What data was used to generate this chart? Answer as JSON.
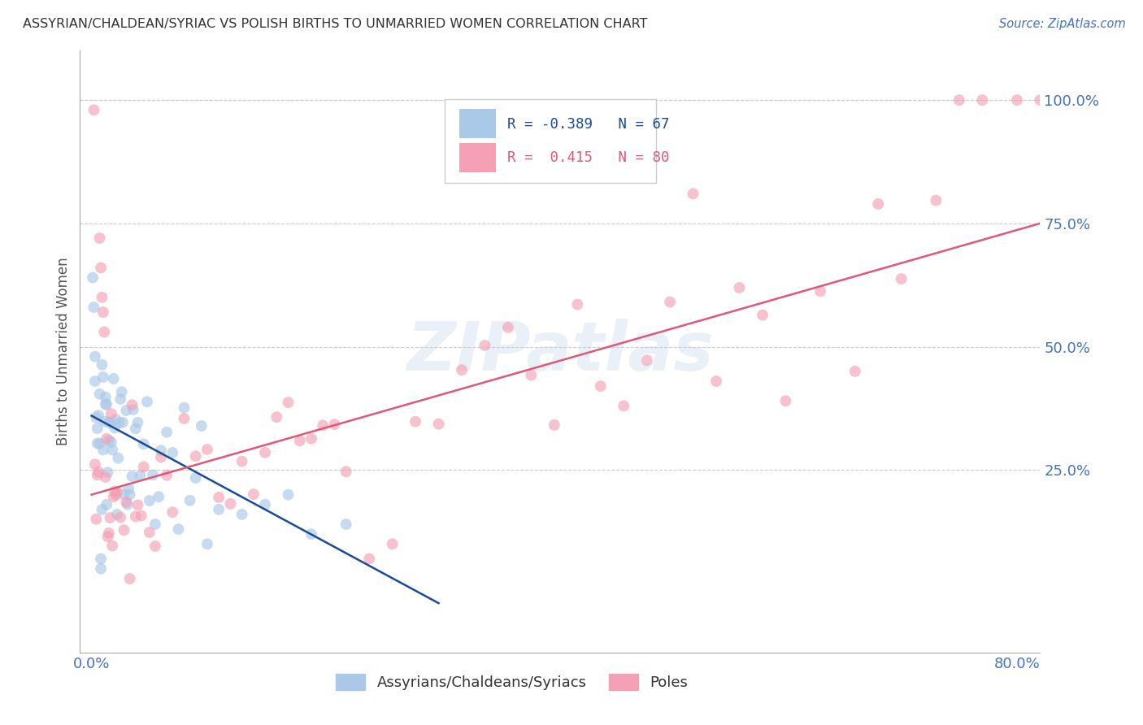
{
  "title": "ASSYRIAN/CHALDEAN/SYRIAC VS POLISH BIRTHS TO UNMARRIED WOMEN CORRELATION CHART",
  "source": "Source: ZipAtlas.com",
  "ylabel": "Births to Unmarried Women",
  "ytick_labels": [
    "100.0%",
    "75.0%",
    "50.0%",
    "25.0%"
  ],
  "ytick_values": [
    1.0,
    0.75,
    0.5,
    0.25
  ],
  "xtick_labels": [
    "0.0%",
    "80.0%"
  ],
  "xtick_values": [
    0.0,
    0.8
  ],
  "xlim": [
    -0.01,
    0.82
  ],
  "ylim": [
    -0.12,
    1.1
  ],
  "legend_blue_R": "-0.389",
  "legend_blue_N": "67",
  "legend_pink_R": "0.415",
  "legend_pink_N": "80",
  "legend_label_blue": "Assyrians/Chaldeans/Syriacs",
  "legend_label_pink": "Poles",
  "watermark": "ZIPatlas",
  "title_color": "#333333",
  "source_color": "#4472c4",
  "ylabel_color": "#555555",
  "ytick_color": "#4472c4",
  "xtick_color": "#4472c4",
  "grid_color": "#cccccc",
  "blue_scatter_color": "#aac8e8",
  "blue_line_color": "#1a4a9a",
  "pink_scatter_color": "#f5a0b5",
  "pink_line_color": "#e05878",
  "scatter_size": 100,
  "blue_scatter_alpha": 0.65,
  "pink_scatter_alpha": 0.65,
  "blue_line_x": [
    0.0,
    0.3
  ],
  "blue_line_y": [
    0.36,
    -0.02
  ],
  "pink_line_x": [
    0.0,
    0.82
  ],
  "pink_line_y": [
    0.2,
    0.75
  ]
}
